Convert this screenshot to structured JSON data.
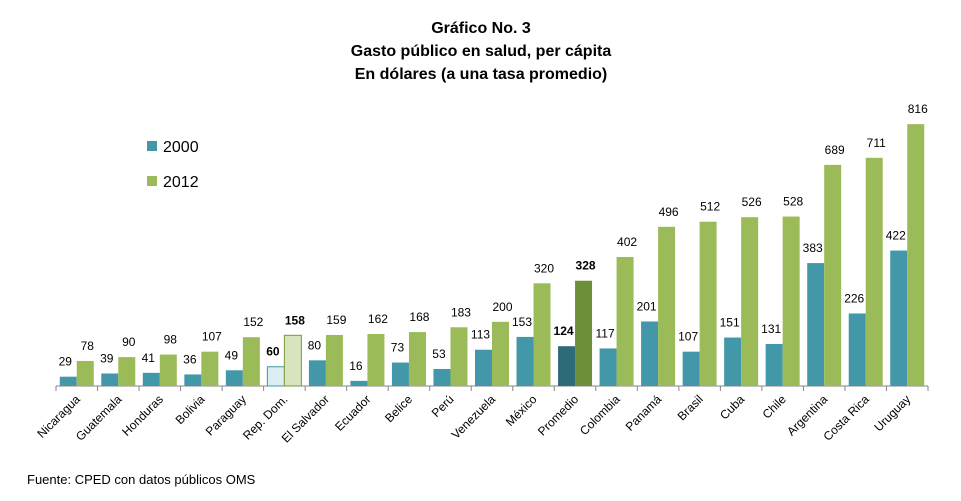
{
  "chart_data": {
    "type": "bar",
    "title": "Gráfico No. 3",
    "subtitle_1": "Gasto público en salud, per cápita",
    "subtitle_2": "En dólares (a una tasa promedio)",
    "xlabel": "",
    "ylabel": "",
    "ylim": [
      0,
      860
    ],
    "grid": false,
    "legend_position": "top-left",
    "categories": [
      "Nicaragua",
      "Guatemala",
      "Honduras",
      "Bolivia",
      "Paraguay",
      "Rep. Dom.",
      "El Salvador",
      "Ecuador",
      "Belice",
      "Perú",
      "Venezuela",
      "México",
      "Promedio",
      "Colombia",
      "Panamá",
      "Brasil",
      "Cuba",
      "Chile",
      "Argentina",
      "Costa Rica",
      "Uruguay"
    ],
    "series": [
      {
        "name": "2000",
        "color": "#4298A8",
        "values": [
          29,
          39,
          41,
          36,
          49,
          60,
          80,
          16,
          73,
          53,
          113,
          153,
          124,
          117,
          201,
          107,
          151,
          131,
          383,
          226,
          422
        ]
      },
      {
        "name": "2012",
        "color": "#9BBB59",
        "values": [
          78,
          90,
          98,
          107,
          152,
          158,
          159,
          162,
          168,
          183,
          200,
          320,
          328,
          402,
          496,
          512,
          526,
          528,
          689,
          711,
          816
        ]
      }
    ],
    "highlight": {
      "Rep. Dom.": {
        "2000_color": "#DAEEF3",
        "2012_color": "#D7E4BD",
        "bold_labels": true
      },
      "Promedio": {
        "2000_color": "#2E6B78",
        "2012_color": "#6E8F3A",
        "bold_labels": true
      }
    },
    "source": "Fuente: CPED con datos públicos OMS"
  }
}
